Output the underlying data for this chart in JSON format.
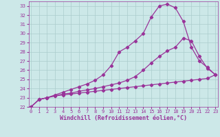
{
  "xlabel": "Windchill (Refroidissement éolien,°C)",
  "bg_color": "#cce8e8",
  "grid_color": "#aacccc",
  "line_color": "#993399",
  "x": [
    0,
    1,
    2,
    3,
    4,
    5,
    6,
    7,
    8,
    9,
    10,
    11,
    12,
    13,
    14,
    15,
    16,
    17,
    18,
    19,
    20,
    21,
    22,
    23
  ],
  "line1": [
    22.0,
    22.8,
    23.0,
    23.2,
    23.3,
    23.4,
    23.5,
    23.6,
    23.7,
    23.8,
    23.9,
    24.0,
    24.1,
    24.2,
    24.3,
    24.4,
    24.5,
    24.6,
    24.7,
    24.8,
    24.9,
    25.0,
    25.1,
    25.5
  ],
  "line2": [
    22.0,
    22.8,
    23.0,
    23.2,
    23.4,
    23.5,
    23.7,
    23.85,
    24.0,
    24.2,
    24.4,
    24.6,
    24.9,
    25.3,
    26.0,
    26.8,
    27.5,
    28.1,
    28.5,
    29.5,
    29.2,
    27.5,
    26.2,
    25.5
  ],
  "line3": [
    22.0,
    22.8,
    23.0,
    23.3,
    23.6,
    23.9,
    24.2,
    24.5,
    24.9,
    25.5,
    26.5,
    28.0,
    28.5,
    29.2,
    30.0,
    31.8,
    33.0,
    33.2,
    32.8,
    31.3,
    28.5,
    27.0,
    26.3,
    25.5
  ],
  "ylim": [
    22,
    33.5
  ],
  "xlim": [
    -0.3,
    23.3
  ],
  "yticks": [
    22,
    23,
    24,
    25,
    26,
    27,
    28,
    29,
    30,
    31,
    32,
    33
  ],
  "xticks": [
    0,
    1,
    2,
    3,
    4,
    5,
    6,
    7,
    8,
    9,
    10,
    11,
    12,
    13,
    14,
    15,
    16,
    17,
    18,
    19,
    20,
    21,
    22,
    23
  ],
  "tick_fontsize": 5.0,
  "xlabel_fontsize": 6.0,
  "markersize": 2.2,
  "linewidth": 0.9
}
